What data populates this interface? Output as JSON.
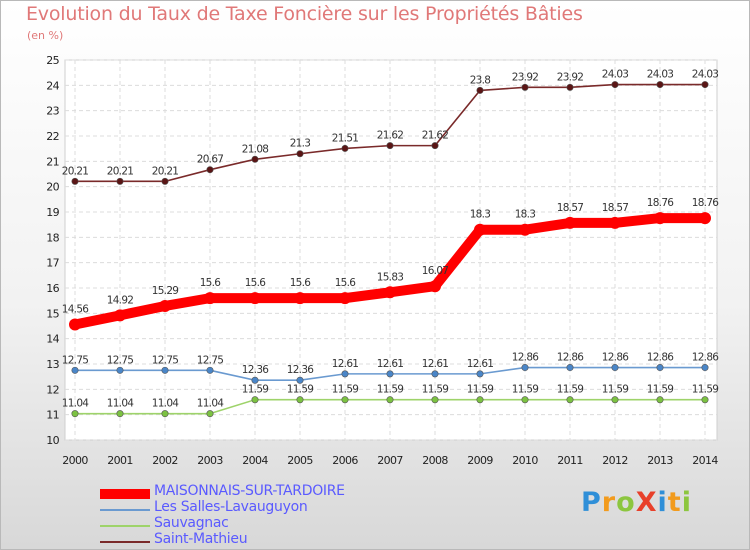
{
  "header": {
    "title": "Evolution du Taux de Taxe Foncière sur les Propriétés Bâties",
    "unit": "(en %)"
  },
  "chart_data": {
    "type": "line",
    "title": "Evolution du Taux de Taxe Foncière sur les Propriétés Bâties",
    "ylabel": "(en %)",
    "xlabel": "",
    "ylim": [
      10,
      25
    ],
    "yticks": [
      10,
      11,
      12,
      13,
      14,
      15,
      16,
      17,
      18,
      19,
      20,
      21,
      22,
      23,
      24,
      25
    ],
    "x": [
      "2000",
      "2001",
      "2002",
      "2003",
      "2004",
      "2005",
      "2006",
      "2007",
      "2008",
      "2009",
      "2010",
      "2011",
      "2012",
      "2013",
      "2014"
    ],
    "grid": true,
    "series": [
      {
        "name": "Saint-Mathieu",
        "color": "#7a2a2a",
        "marker": "#5a1515",
        "values": [
          20.21,
          20.21,
          20.21,
          20.67,
          21.08,
          21.3,
          21.51,
          21.62,
          21.62,
          23.8,
          23.92,
          23.92,
          24.03,
          24.03,
          24.03
        ],
        "labels": [
          "20.21",
          "20.21",
          "20.21",
          "20.67",
          "21.08",
          "21.3",
          "21.51",
          "21.62",
          "21.62",
          "23.8",
          "23.92",
          "23.92",
          "24.03",
          "24.03",
          "24.03"
        ]
      },
      {
        "name": "MAISONNAIS-SUR-TARDOIRE",
        "color": "#ff0000",
        "marker": "#ff0000",
        "values": [
          14.56,
          14.92,
          15.29,
          15.6,
          15.6,
          15.6,
          15.6,
          15.83,
          16.07,
          18.3,
          18.3,
          18.57,
          18.57,
          18.76,
          18.76
        ],
        "labels": [
          "14.56",
          "14.92",
          "15.29",
          "15.6",
          "15.6",
          "15.6",
          "15.6",
          "15.83",
          "16.07",
          "18.3",
          "18.3",
          "18.57",
          "18.57",
          "18.76",
          "18.76"
        ]
      },
      {
        "name": "Les Salles-Lavauguyon",
        "color": "#6a9ad0",
        "marker": "#4a86c8",
        "values": [
          12.75,
          12.75,
          12.75,
          12.75,
          12.36,
          12.36,
          12.61,
          12.61,
          12.61,
          12.61,
          12.86,
          12.86,
          12.86,
          12.86,
          12.86
        ],
        "labels": [
          "12.75",
          "12.75",
          "12.75",
          "12.75",
          "12.36",
          "12.36",
          "12.61",
          "12.61",
          "12.61",
          "12.61",
          "12.86",
          "12.86",
          "12.86",
          "12.86",
          "12.86"
        ]
      },
      {
        "name": "Sauvagnac",
        "color": "#9ed36a",
        "marker": "#7cc242",
        "values": [
          11.04,
          11.04,
          11.04,
          11.04,
          11.59,
          11.59,
          11.59,
          11.59,
          11.59,
          11.59,
          11.59,
          11.59,
          11.59,
          11.59,
          11.59
        ],
        "labels": [
          "11.04",
          "11.04",
          "11.04",
          "11.04",
          "11.59",
          "11.59",
          "11.59",
          "11.59",
          "11.59",
          "11.59",
          "11.59",
          "11.59",
          "11.59",
          "11.59",
          "11.59"
        ]
      }
    ],
    "legend": [
      "MAISONNAIS-SUR-TARDOIRE",
      "Les Salles-Lavauguyon",
      "Sauvagnac",
      "Saint-Mathieu"
    ],
    "legend_position": "bottom-left"
  },
  "legend": {
    "items": [
      {
        "label": "MAISONNAIS-SUR-TARDOIRE",
        "color": "#ff0000"
      },
      {
        "label": "Les Salles-Lavauguyon",
        "color": "#6a9ad0"
      },
      {
        "label": "Sauvagnac",
        "color": "#9ed36a"
      },
      {
        "label": "Saint-Mathieu",
        "color": "#7a2a2a"
      }
    ]
  },
  "logo": {
    "text": "ProXiti",
    "letters": [
      "P",
      "r",
      "o",
      "X",
      "i",
      "t",
      "i"
    ],
    "colors": [
      "#2f8fd8",
      "#f29b1d",
      "#8cc63f",
      "#e8402a",
      "#2f8fd8",
      "#f29b1d",
      "#8cc63f"
    ]
  }
}
